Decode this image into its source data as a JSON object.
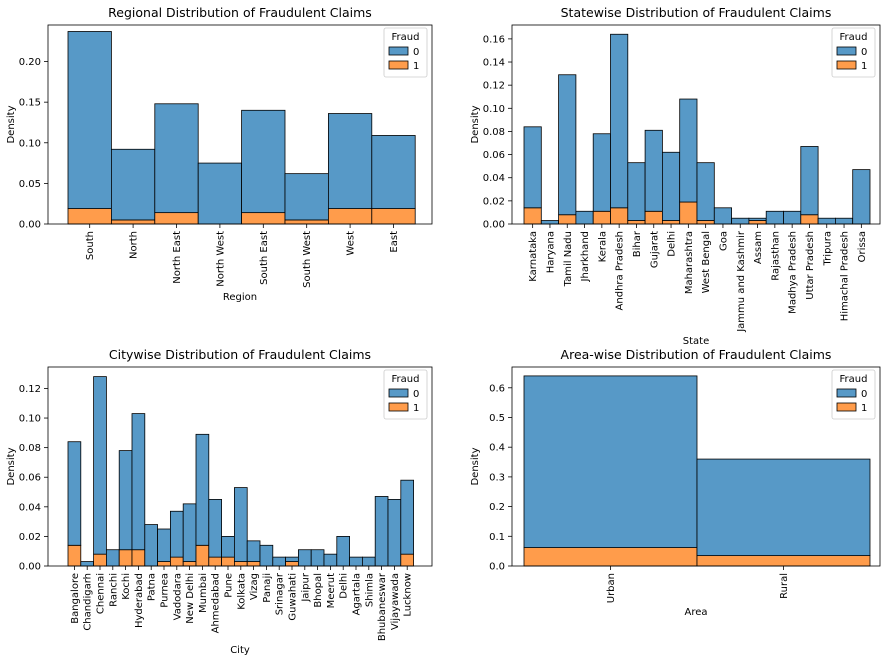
{
  "colors": {
    "fraud0": "#5799c7",
    "fraud1": "#ff9c4b",
    "edge": "#000000"
  },
  "chart_data": [
    {
      "type": "bar",
      "stacked": true,
      "title": "Regional Distribution of Fraudulent Claims",
      "xlabel": "Region",
      "ylabel": "Density",
      "ylim": [
        0,
        0.245
      ],
      "yticks": [
        "0.00",
        "0.05",
        "0.10",
        "0.15",
        "0.20"
      ],
      "categories": [
        "South",
        "North",
        "North East",
        "North West",
        "South East",
        "South West",
        "West",
        "East"
      ],
      "legend": {
        "title": "Fraud",
        "labels": [
          "0",
          "1"
        ],
        "position": "top-right"
      },
      "series": [
        {
          "name": "0",
          "values": [
            0.218,
            0.087,
            0.134,
            0.075,
            0.126,
            0.057,
            0.117,
            0.09
          ]
        },
        {
          "name": "1",
          "values": [
            0.019,
            0.005,
            0.014,
            0.0,
            0.014,
            0.005,
            0.019,
            0.019
          ]
        }
      ]
    },
    {
      "type": "bar",
      "stacked": true,
      "title": "Statewise Distribution of Fraudulent Claims",
      "xlabel": "State",
      "ylabel": "Density",
      "ylim": [
        0,
        0.172
      ],
      "yticks": [
        "0.00",
        "0.02",
        "0.04",
        "0.06",
        "0.08",
        "0.10",
        "0.12",
        "0.14",
        "0.16"
      ],
      "categories": [
        "Karnataka",
        "Haryana",
        "Tamil Nadu",
        "Jharkhand",
        "Kerala",
        "Andhra Pradesh",
        "Bihar",
        "Gujarat",
        "Delhi",
        "Maharashtra",
        "West Bengal",
        "Goa",
        "Jammu and Kashmir",
        "Assam",
        "Rajasthan",
        "Madhya Pradesh",
        "Uttar Pradesh",
        "Tripura",
        "Himachal Pradesh",
        "Orissa"
      ],
      "legend": {
        "title": "Fraud",
        "labels": [
          "0",
          "1"
        ],
        "position": "top-right"
      },
      "series": [
        {
          "name": "0",
          "values": [
            0.07,
            0.003,
            0.121,
            0.011,
            0.067,
            0.15,
            0.05,
            0.07,
            0.059,
            0.089,
            0.05,
            0.014,
            0.005,
            0.002,
            0.011,
            0.011,
            0.059,
            0.005,
            0.005,
            0.047
          ]
        },
        {
          "name": "1",
          "values": [
            0.014,
            0.0,
            0.008,
            0.0,
            0.011,
            0.014,
            0.003,
            0.011,
            0.003,
            0.019,
            0.003,
            0.0,
            0.0,
            0.003,
            0.0,
            0.0,
            0.008,
            0.0,
            0.0,
            0.0
          ]
        }
      ]
    },
    {
      "type": "bar",
      "stacked": true,
      "title": "Citywise Distribution of Fraudulent Claims",
      "xlabel": "City",
      "ylabel": "Density",
      "ylim": [
        0,
        0.1345
      ],
      "yticks": [
        "0.00",
        "0.02",
        "0.04",
        "0.06",
        "0.08",
        "0.10",
        "0.12"
      ],
      "categories": [
        "Bangalore",
        "Chandigarh",
        "Chennai",
        "Ranchi",
        "Kochi",
        "Hyderabad",
        "Patna",
        "Purnea",
        "Vadodara",
        "New Delhi",
        "Mumbai",
        "Ahmedabad",
        "Pune",
        "Kolkata",
        "Vizag",
        "Panaji",
        "Srinagar",
        "Guwahati",
        "Jaipur",
        "Bhopal",
        "Meerut",
        "Delhi",
        "Agartala",
        "Shimla",
        "Bhubaneswar",
        "Vijayawada",
        "Lucknow"
      ],
      "legend": {
        "title": "Fraud",
        "labels": [
          "0",
          "1"
        ],
        "position": "top-right"
      },
      "series": [
        {
          "name": "0",
          "values": [
            0.07,
            0.003,
            0.12,
            0.011,
            0.067,
            0.092,
            0.028,
            0.022,
            0.031,
            0.039,
            0.075,
            0.039,
            0.014,
            0.05,
            0.014,
            0.014,
            0.006,
            0.003,
            0.011,
            0.011,
            0.008,
            0.02,
            0.006,
            0.006,
            0.047,
            0.045,
            0.05
          ]
        },
        {
          "name": "1",
          "values": [
            0.014,
            0.0,
            0.008,
            0.0,
            0.011,
            0.011,
            0.0,
            0.003,
            0.006,
            0.003,
            0.014,
            0.006,
            0.006,
            0.003,
            0.003,
            0.0,
            0.0,
            0.003,
            0.0,
            0.0,
            0.0,
            0.0,
            0.0,
            0.0,
            0.0,
            0.0,
            0.008
          ]
        }
      ]
    },
    {
      "type": "bar",
      "stacked": true,
      "title": "Area-wise Distribution of Fraudulent Claims",
      "xlabel": "Area",
      "ylabel": "Density",
      "ylim": [
        0,
        0.67
      ],
      "yticks": [
        "0.0",
        "0.1",
        "0.2",
        "0.3",
        "0.4",
        "0.5",
        "0.6"
      ],
      "categories": [
        "Urban",
        "Rural"
      ],
      "legend": {
        "title": "Fraud",
        "labels": [
          "0",
          "1"
        ],
        "position": "top-right"
      },
      "series": [
        {
          "name": "0",
          "values": [
            0.578,
            0.325
          ]
        },
        {
          "name": "1",
          "values": [
            0.062,
            0.035
          ]
        }
      ]
    }
  ]
}
